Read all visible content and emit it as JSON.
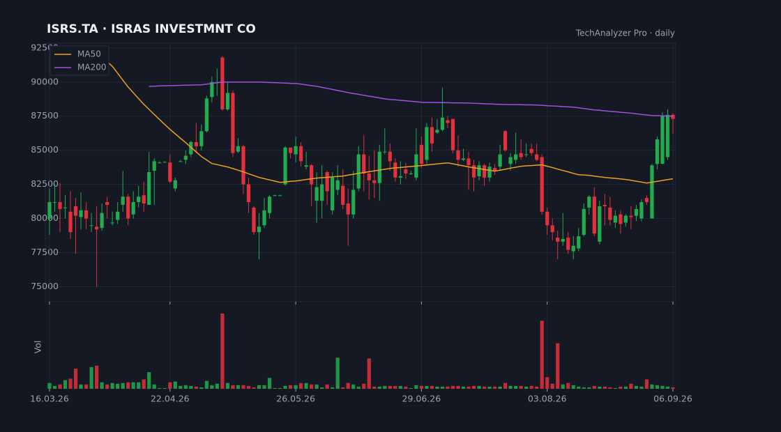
{
  "chart_data": {
    "type": "candlestick",
    "title": "ISRS.TA · ISRAS INVESTMNT CO",
    "subtitle": "TechAnalyzer Pro · daily",
    "volume_label": "Vol",
    "up_color": "#22ab4f",
    "down_color": "#e3313c",
    "grid": true,
    "legend": "upper left",
    "ylim": [
      73900,
      92850
    ],
    "yticks": [
      75000,
      77500,
      80000,
      82500,
      85000,
      87500,
      90000,
      92500
    ],
    "categories": [
      "16.03.26",
      null,
      null,
      null,
      null,
      null,
      null,
      null,
      null,
      null,
      null,
      null,
      null,
      null,
      null,
      null,
      null,
      null,
      null,
      null,
      null,
      null,
      null,
      "22.04.26",
      null,
      null,
      null,
      null,
      null,
      null,
      null,
      null,
      null,
      null,
      null,
      null,
      null,
      null,
      null,
      null,
      null,
      null,
      null,
      null,
      null,
      null,
      null,
      "26.05.26",
      null,
      null,
      null,
      null,
      null,
      null,
      null,
      null,
      null,
      null,
      null,
      null,
      null,
      null,
      null,
      null,
      null,
      null,
      null,
      null,
      null,
      null,
      null,
      "29.06.26",
      null,
      null,
      null,
      null,
      null,
      null,
      null,
      null,
      null,
      null,
      null,
      null,
      null,
      null,
      null,
      null,
      null,
      null,
      null,
      null,
      null,
      null,
      null,
      "03.08.26",
      null,
      null,
      null,
      null,
      null,
      null,
      null,
      null,
      null,
      null,
      null,
      null,
      null,
      null,
      null,
      null,
      null,
      null,
      null,
      null,
      null,
      null,
      null,
      "06.09.26"
    ],
    "open": [
      80000,
      81200,
      81200,
      80800,
      80500,
      80900,
      80100,
      80600,
      79500,
      79400,
      79300,
      81200,
      79700,
      79900,
      81000,
      81600,
      80300,
      81200,
      81700,
      81000,
      83500,
      84100,
      84150,
      84100,
      82200,
      84200,
      84300,
      84700,
      85600,
      85300,
      86400,
      88900,
      90000,
      91800,
      88000,
      89200,
      84900,
      85300,
      82500,
      80800,
      79000,
      79500,
      80400,
      81700,
      81700,
      82500,
      85200,
      84700,
      85300,
      83800,
      83900,
      81300,
      81300,
      83400,
      80600,
      82100,
      82400,
      81100,
      80300,
      82200,
      84700,
      83300,
      82800,
      82600,
      84900,
      84900,
      84100,
      83000,
      83600,
      83300,
      83000,
      85400,
      84300,
      86700,
      86300,
      86500,
      87200,
      87300,
      85000,
      84300,
      84400,
      83900,
      83100,
      83900,
      83000,
      83700,
      83800,
      86400,
      84000,
      84300,
      84800,
      84700,
      85100,
      84700,
      84500,
      80500,
      79500,
      78600,
      78300,
      78600,
      77600,
      77800,
      78800,
      80800,
      81600,
      78300,
      81000,
      80800,
      79700,
      80300,
      79700,
      80200,
      80200,
      80000,
      81500,
      80000,
      84000,
      84000,
      84500,
      87600
    ],
    "high": [
      82200,
      82500,
      82600,
      81700,
      82000,
      81500,
      81900,
      81200,
      80400,
      80900,
      81100,
      81600,
      80500,
      81200,
      83500,
      81800,
      82000,
      82400,
      82700,
      84900,
      84400,
      84200,
      84200,
      84700,
      83000,
      84300,
      85000,
      85700,
      87000,
      86900,
      89000,
      90400,
      91000,
      91900,
      90000,
      89400,
      85900,
      85400,
      83000,
      80900,
      80400,
      81500,
      81700,
      81750,
      81750,
      85300,
      85200,
      86000,
      85600,
      84900,
      84000,
      83400,
      83900,
      83500,
      83400,
      83900,
      83600,
      82200,
      83500,
      85300,
      86100,
      84600,
      85000,
      85400,
      86600,
      85500,
      84400,
      84200,
      84100,
      83500,
      86600,
      86000,
      87000,
      87400,
      87300,
      89600,
      87500,
      87300,
      86100,
      85100,
      84900,
      84300,
      84200,
      84000,
      84100,
      84000,
      85400,
      86500,
      84800,
      86300,
      85800,
      85500,
      85500,
      85500,
      84700,
      80800,
      80000,
      79100,
      80400,
      79000,
      78700,
      79300,
      81100,
      81700,
      82300,
      81300,
      81800,
      81600,
      80600,
      80600,
      80300,
      80900,
      81000,
      81400,
      81700,
      84000,
      86000,
      87800,
      88000,
      87700
    ],
    "low": [
      78800,
      80500,
      79000,
      80000,
      78500,
      77400,
      79200,
      79200,
      79000,
      75000,
      79100,
      80000,
      79500,
      79600,
      80500,
      79500,
      80000,
      80800,
      80500,
      81000,
      81000,
      84050,
      84100,
      82600,
      82000,
      84150,
      84000,
      84500,
      84800,
      85000,
      86300,
      88500,
      89000,
      87900,
      87900,
      84500,
      84800,
      81800,
      80400,
      78800,
      77000,
      79300,
      80000,
      81650,
      81650,
      82400,
      84400,
      84100,
      83800,
      83600,
      80900,
      79700,
      80000,
      81000,
      80300,
      81700,
      80700,
      78000,
      80000,
      82000,
      82000,
      81400,
      81500,
      81300,
      84700,
      83500,
      82700,
      82500,
      82900,
      83200,
      82800,
      83700,
      84000,
      84900,
      86200,
      86400,
      86600,
      84800,
      83800,
      84200,
      82100,
      82000,
      82800,
      82400,
      82700,
      83200,
      83500,
      84900,
      83500,
      84000,
      84300,
      84500,
      84600,
      84200,
      80300,
      78800,
      78400,
      77000,
      78000,
      77400,
      77000,
      77600,
      78700,
      80300,
      78700,
      78100,
      79500,
      79500,
      79300,
      78900,
      79400,
      79200,
      79800,
      79800,
      81000,
      80000,
      83600,
      84000,
      84300,
      86200
    ],
    "close": [
      81200,
      81200,
      80700,
      80800,
      79000,
      80200,
      80600,
      80000,
      79500,
      79200,
      80400,
      81000,
      79700,
      80500,
      81600,
      80000,
      81200,
      81600,
      81100,
      83400,
      84200,
      84100,
      84150,
      82700,
      82800,
      84200,
      84600,
      85600,
      85300,
      86400,
      88800,
      90000,
      90000,
      88000,
      89200,
      84800,
      85300,
      82500,
      81200,
      79000,
      79400,
      80600,
      81600,
      81700,
      81700,
      85200,
      84800,
      85300,
      84200,
      83900,
      82500,
      82300,
      82500,
      82000,
      83000,
      82800,
      81000,
      80300,
      82100,
      84700,
      83300,
      82800,
      82600,
      84900,
      84900,
      84200,
      83000,
      83100,
      83300,
      83300,
      84700,
      84000,
      86700,
      85500,
      86500,
      87400,
      87000,
      85000,
      84300,
      84400,
      83900,
      83000,
      83900,
      83000,
      83800,
      83500,
      84700,
      85000,
      84500,
      84700,
      84500,
      84700,
      84800,
      84300,
      80500,
      79500,
      79000,
      78300,
      78500,
      77700,
      78000,
      78700,
      80700,
      81600,
      78900,
      80900,
      80900,
      79900,
      80200,
      79600,
      80200,
      80100,
      80700,
      81200,
      81200,
      83900,
      85800,
      87500,
      87600,
      87300
    ],
    "volume": [
      8,
      4,
      6,
      12,
      14,
      28,
      6,
      6,
      30,
      32,
      9,
      6,
      8,
      7,
      8,
      9,
      9,
      9,
      13,
      23,
      6,
      1,
      1,
      9,
      10,
      4,
      5,
      4,
      3,
      2,
      11,
      5,
      7,
      104,
      8,
      5,
      5,
      5,
      4,
      2,
      5,
      5,
      15,
      1,
      1,
      4,
      5,
      5,
      8,
      8,
      6,
      6,
      2,
      6,
      2,
      43,
      2,
      8,
      6,
      3,
      7,
      42,
      3,
      3,
      4,
      4,
      4,
      4,
      3,
      1,
      5,
      4,
      4,
      4,
      3,
      3,
      3,
      4,
      4,
      3,
      3,
      4,
      4,
      3,
      3,
      3,
      3,
      8,
      4,
      4,
      4,
      3,
      4,
      3,
      94,
      16,
      7,
      63,
      6,
      8,
      5,
      3,
      2,
      2,
      4,
      3,
      3,
      2,
      1,
      3,
      3,
      7,
      4,
      3,
      13,
      6,
      5,
      4,
      3,
      2
    ],
    "series": [
      {
        "name": "MA50",
        "color": "#f0a020",
        "values": [
          null,
          null,
          null,
          null,
          null,
          null,
          null,
          null,
          92600,
          92200,
          91850,
          91500,
          91150,
          90650,
          90140,
          89640,
          89220,
          88790,
          88370,
          88000,
          87620,
          87250,
          86890,
          86530,
          86210,
          85880,
          85560,
          85220,
          84880,
          84540,
          84290,
          84030,
          83950,
          83860,
          83780,
          83660,
          83540,
          83420,
          83280,
          83150,
          83010,
          82920,
          82830,
          82740,
          82650,
          82680,
          82720,
          82750,
          82800,
          82860,
          82910,
          82960,
          82990,
          83020,
          83050,
          83080,
          83110,
          83180,
          83240,
          83310,
          83370,
          83430,
          83490,
          83550,
          83610,
          83670,
          83710,
          83740,
          83780,
          83810,
          83850,
          83880,
          83920,
          83960,
          84000,
          84040,
          84080,
          84010,
          83930,
          83860,
          83780,
          83720,
          83660,
          83590,
          83530,
          83470,
          83540,
          83610,
          83690,
          83760,
          83830,
          83860,
          83880,
          83910,
          83930,
          83830,
          83730,
          83620,
          83520,
          83420,
          83310,
          83210,
          83190,
          83160,
          83110,
          83060,
          83010,
          82970,
          82940,
          82900,
          82860,
          82800,
          82730,
          82670,
          82600,
          82660,
          82720,
          82790,
          82850,
          82910
        ]
      },
      {
        "name": "MA200",
        "color": "#a14fe8",
        "values": [
          null,
          null,
          null,
          null,
          null,
          null,
          null,
          null,
          null,
          null,
          null,
          null,
          null,
          null,
          null,
          null,
          null,
          null,
          null,
          89690,
          89700,
          89720,
          89730,
          89740,
          89750,
          89760,
          89770,
          89780,
          89790,
          89800,
          89850,
          89900,
          89950,
          90000,
          90000,
          90000,
          90000,
          90000,
          90000,
          90000,
          90000,
          89990,
          89970,
          89960,
          89940,
          89930,
          89910,
          89900,
          89850,
          89800,
          89740,
          89690,
          89610,
          89540,
          89460,
          89380,
          89310,
          89230,
          89160,
          89100,
          89030,
          88970,
          88900,
          88840,
          88770,
          88730,
          88700,
          88660,
          88630,
          88590,
          88560,
          88520,
          88510,
          88510,
          88500,
          88500,
          88490,
          88480,
          88480,
          88470,
          88460,
          88440,
          88430,
          88410,
          88400,
          88380,
          88370,
          88360,
          88350,
          88350,
          88340,
          88330,
          88330,
          88320,
          88300,
          88270,
          88250,
          88230,
          88200,
          88180,
          88160,
          88110,
          88060,
          88010,
          87960,
          87930,
          87890,
          87860,
          87830,
          87790,
          87760,
          87720,
          87680,
          87630,
          87590,
          87550,
          87540,
          87530,
          87510,
          87500
        ]
      }
    ]
  }
}
